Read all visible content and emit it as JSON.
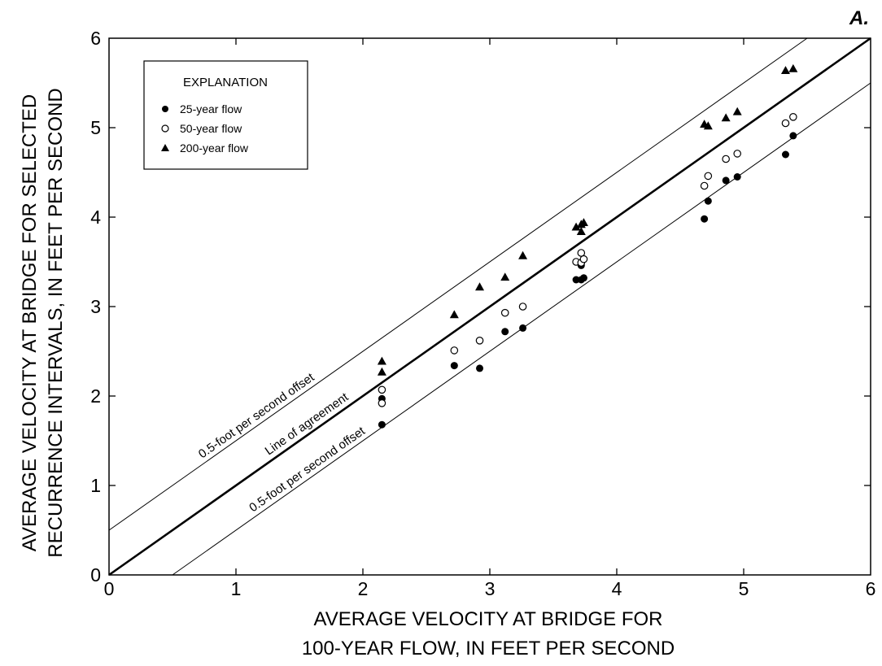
{
  "chart_data": {
    "type": "scatter",
    "panel_label": "A.",
    "xlabel_lines": [
      "AVERAGE VELOCITY AT BRIDGE FOR",
      "100-YEAR FLOW, IN FEET PER SECOND"
    ],
    "ylabel_lines": [
      "AVERAGE VELOCITY AT BRIDGE FOR SELECTED",
      "RECURRENCE INTERVALS, IN FEET PER SECOND"
    ],
    "xlim": [
      0,
      6
    ],
    "ylim": [
      0,
      6
    ],
    "xticks": [
      0,
      1,
      2,
      3,
      4,
      5,
      6
    ],
    "yticks": [
      0,
      1,
      2,
      3,
      4,
      5,
      6
    ],
    "grid": false,
    "legend": {
      "title": "EXPLANATION",
      "placement": "top-left",
      "entries": [
        {
          "label": "25-year flow",
          "marker": "filled-circle"
        },
        {
          "label": "50-year flow",
          "marker": "open-circle"
        },
        {
          "label": "200-year flow",
          "marker": "filled-triangle"
        }
      ]
    },
    "reference_lines": [
      {
        "label": "Line of agreement",
        "offset": 0,
        "style": "thick"
      },
      {
        "label": "0.5-foot per second offset",
        "offset": 0.5,
        "style": "thin"
      },
      {
        "label": "0.5-foot per second offset",
        "offset": -0.5,
        "style": "thin"
      }
    ],
    "series": [
      {
        "name": "25-year flow",
        "marker": "filled-circle",
        "x": [
          2.15,
          2.15,
          2.72,
          2.92,
          3.12,
          3.26,
          3.68,
          3.72,
          3.72,
          3.74,
          4.69,
          4.72,
          4.86,
          4.95,
          5.33,
          5.39
        ],
        "y": [
          1.97,
          1.68,
          2.34,
          2.31,
          2.72,
          2.76,
          3.3,
          3.46,
          3.3,
          3.32,
          3.98,
          4.18,
          4.41,
          4.45,
          4.7,
          4.91
        ]
      },
      {
        "name": "50-year flow",
        "marker": "open-circle",
        "x": [
          2.15,
          2.15,
          2.72,
          2.92,
          3.12,
          3.26,
          3.68,
          3.72,
          3.72,
          3.74,
          4.69,
          4.72,
          4.86,
          4.95,
          5.33,
          5.39
        ],
        "y": [
          2.07,
          1.92,
          2.51,
          2.62,
          2.93,
          3.0,
          3.5,
          3.6,
          3.49,
          3.53,
          4.35,
          4.46,
          4.65,
          4.71,
          5.05,
          5.12
        ]
      },
      {
        "name": "200-year flow",
        "marker": "filled-triangle",
        "x": [
          2.15,
          2.15,
          2.72,
          2.92,
          3.12,
          3.26,
          3.68,
          3.72,
          3.72,
          3.74,
          4.69,
          4.72,
          4.86,
          4.95,
          5.33,
          5.39
        ],
        "y": [
          2.39,
          2.27,
          2.91,
          3.22,
          3.33,
          3.57,
          3.89,
          3.92,
          3.84,
          3.94,
          5.04,
          5.02,
          5.11,
          5.18,
          5.64,
          5.66
        ]
      }
    ]
  }
}
